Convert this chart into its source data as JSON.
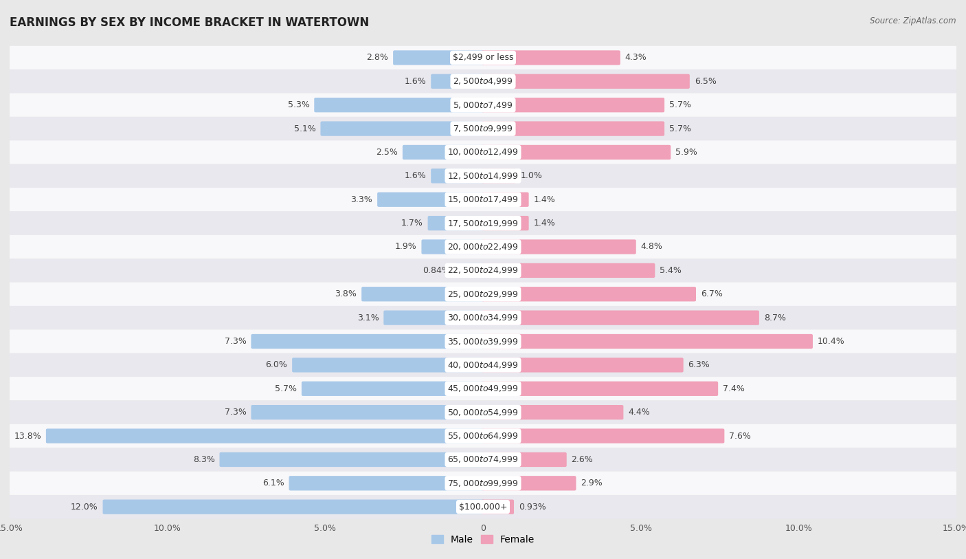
{
  "title": "EARNINGS BY SEX BY INCOME BRACKET IN WATERTOWN",
  "source": "Source: ZipAtlas.com",
  "categories": [
    "$2,499 or less",
    "$2,500 to $4,999",
    "$5,000 to $7,499",
    "$7,500 to $9,999",
    "$10,000 to $12,499",
    "$12,500 to $14,999",
    "$15,000 to $17,499",
    "$17,500 to $19,999",
    "$20,000 to $22,499",
    "$22,500 to $24,999",
    "$25,000 to $29,999",
    "$30,000 to $34,999",
    "$35,000 to $39,999",
    "$40,000 to $44,999",
    "$45,000 to $49,999",
    "$50,000 to $54,999",
    "$55,000 to $64,999",
    "$65,000 to $74,999",
    "$75,000 to $99,999",
    "$100,000+"
  ],
  "male_values": [
    2.8,
    1.6,
    5.3,
    5.1,
    2.5,
    1.6,
    3.3,
    1.7,
    1.9,
    0.84,
    3.8,
    3.1,
    7.3,
    6.0,
    5.7,
    7.3,
    13.8,
    8.3,
    6.1,
    12.0
  ],
  "female_values": [
    4.3,
    6.5,
    5.7,
    5.7,
    5.9,
    1.0,
    1.4,
    1.4,
    4.8,
    5.4,
    6.7,
    8.7,
    10.4,
    6.3,
    7.4,
    4.4,
    7.6,
    2.6,
    2.9,
    0.93
  ],
  "male_color": "#a8c8e8",
  "female_color": "#f0a0b8",
  "background_outer": "#e8e8e8",
  "row_bg_white": "#f8f8fa",
  "row_bg_gray": "#e8e8ee",
  "xlim": 15.0,
  "bar_height": 0.52,
  "title_fontsize": 12,
  "label_fontsize": 9,
  "source_fontsize": 8.5,
  "tick_fontsize": 9
}
